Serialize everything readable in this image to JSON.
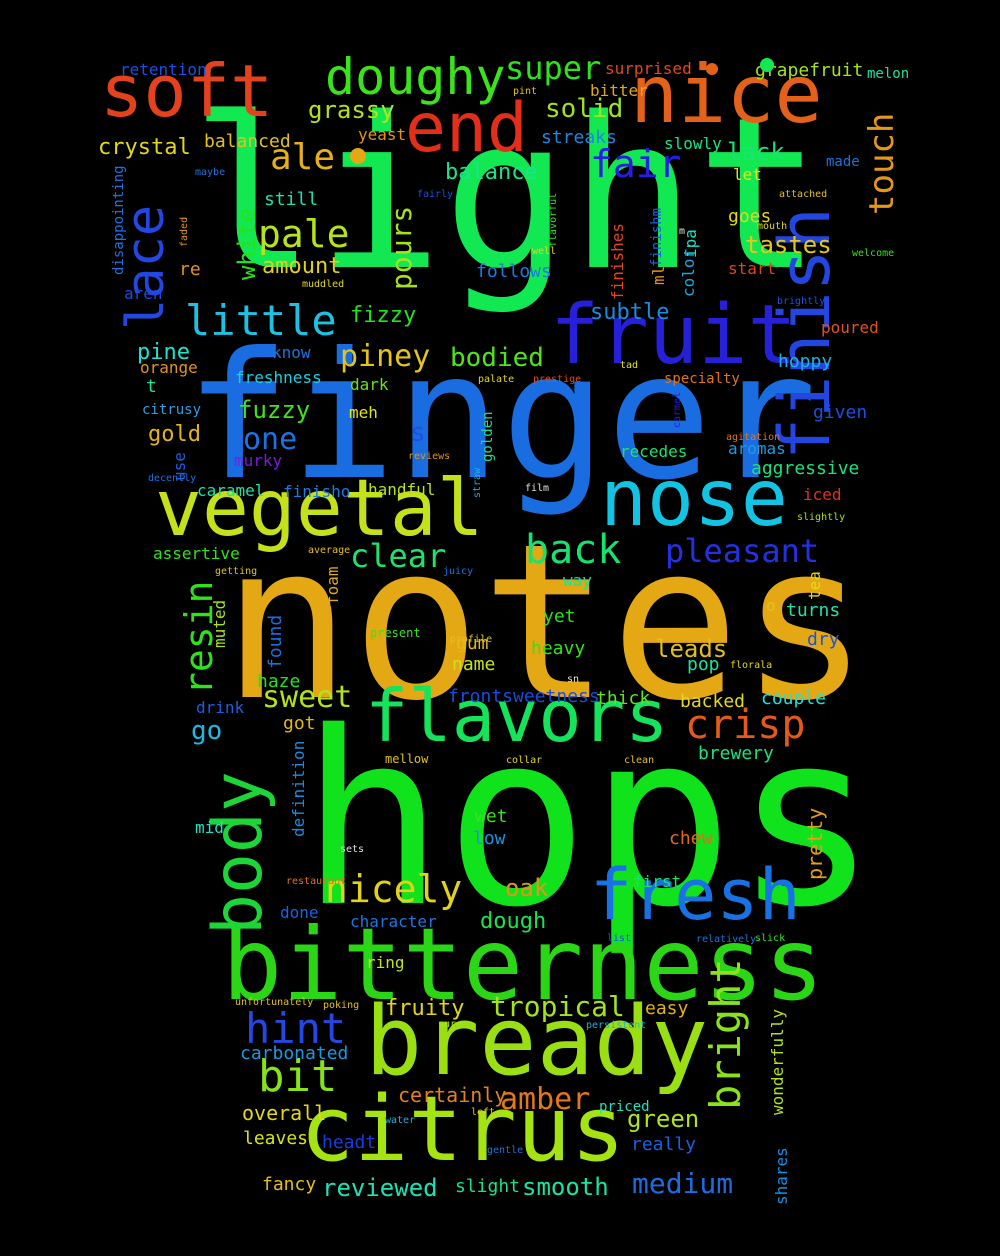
{
  "words": [
    {
      "text": "notes",
      "color": "#e5a815"
    },
    {
      "text": "hops",
      "color": "#10e31c"
    },
    {
      "text": "light",
      "color": "#12e852"
    },
    {
      "text": "finger",
      "color": "#1a6de0"
    },
    {
      "text": "bitterness",
      "color": "#2bd616"
    },
    {
      "text": "bready",
      "color": "#99df13"
    },
    {
      "text": "citrus",
      "color": "#a5e313"
    },
    {
      "text": "vegetal",
      "color": "#c4e11c"
    },
    {
      "text": "nose",
      "color": "#12c3e3"
    },
    {
      "text": "flavors",
      "color": "#14e35b"
    },
    {
      "text": "body",
      "color": "#1cd638"
    },
    {
      "text": "fruit",
      "color": "#2621d8"
    },
    {
      "text": "fresh",
      "color": "#1972e3"
    },
    {
      "text": "nice",
      "color": "#e4611a"
    },
    {
      "text": "soft",
      "color": "#e3421c"
    },
    {
      "text": "end",
      "color": "#e32e1a"
    },
    {
      "text": "finish",
      "color": "#2346e1"
    },
    {
      "text": "doughy",
      "color": "#3ce31a"
    },
    {
      "text": "lace",
      "color": "#2347e3"
    },
    {
      "text": "little",
      "color": "#1bc2e3"
    },
    {
      "text": "back",
      "color": "#16e36e"
    },
    {
      "text": "crisp",
      "color": "#e35a1c"
    },
    {
      "text": "pale",
      "color": "#b8e31a"
    },
    {
      "text": "ale",
      "color": "#e6b116"
    },
    {
      "text": "super",
      "color": "#2ee31a"
    },
    {
      "text": "touch",
      "color": "#e3981a"
    },
    {
      "text": "fair",
      "color": "#2a1ce3"
    },
    {
      "text": "nicely",
      "color": "#e3d21c"
    },
    {
      "text": "bit",
      "color": "#86e31a"
    },
    {
      "text": "hint",
      "color": "#2548e3"
    },
    {
      "text": "amber",
      "color": "#e3781a"
    },
    {
      "text": "bright",
      "color": "#8ae31a"
    },
    {
      "text": "resin",
      "color": "#2ee31a"
    },
    {
      "text": "pleasant",
      "color": "#2330e3"
    },
    {
      "text": "sweet",
      "color": "#b5e31a"
    },
    {
      "text": "clear",
      "color": "#1ee36a"
    },
    {
      "text": "piney",
      "color": "#e3c41a"
    },
    {
      "text": "tropical",
      "color": "#a6e31a"
    },
    {
      "text": "medium",
      "color": "#1c6ce3"
    },
    {
      "text": "smooth",
      "color": "#1ae3a5"
    },
    {
      "text": "reviewed",
      "color": "#1ae3b8"
    },
    {
      "text": "green",
      "color": "#b0e31a"
    },
    {
      "text": "one",
      "color": "#1a74e3"
    },
    {
      "text": "bodied",
      "color": "#52e31a"
    },
    {
      "text": "pours",
      "color": "#a8e31a"
    },
    {
      "text": "solid",
      "color": "#a1e31a"
    },
    {
      "text": "grassy",
      "color": "#b4e31a"
    },
    {
      "text": "crystal",
      "color": "#e3d81a"
    },
    {
      "text": "balance",
      "color": "#1ae38c"
    },
    {
      "text": "lack",
      "color": "#1ae371"
    },
    {
      "text": "tastes",
      "color": "#e3c81a"
    },
    {
      "text": "subtle",
      "color": "#1a8ce3"
    },
    {
      "text": "fuzzy",
      "color": "#40e31a"
    },
    {
      "text": "gold",
      "color": "#e3b41a"
    },
    {
      "text": "pine",
      "color": "#1ae3ce"
    },
    {
      "text": "amount",
      "color": "#e3d01a"
    },
    {
      "text": "fizzy",
      "color": "#20e31a"
    },
    {
      "text": "white",
      "color": "#25e31a"
    },
    {
      "text": "dough",
      "color": "#1ae350"
    },
    {
      "text": "oak",
      "color": "#e3941a"
    },
    {
      "text": "fruity",
      "color": "#e3d61a"
    },
    {
      "text": "leads",
      "color": "#e3bf1a"
    },
    {
      "text": "certainly",
      "color": "#e3811a"
    },
    {
      "text": "carbonated",
      "color": "#1a99e3"
    },
    {
      "text": "overall",
      "color": "#e3d81a"
    },
    {
      "text": "leaves",
      "color": "#d8e31a"
    },
    {
      "text": "headt",
      "color": "#1a3de3"
    },
    {
      "text": "fancy",
      "color": "#e3c11a"
    },
    {
      "text": "slight",
      "color": "#1ae384"
    },
    {
      "text": "really",
      "color": "#1a60e3"
    },
    {
      "text": "shares",
      "color": "#1a8fe3"
    },
    {
      "text": "wonderfully",
      "color": "#b4e31a"
    },
    {
      "text": "priced",
      "color": "#1ae3be"
    },
    {
      "text": "easy",
      "color": "#e3b41a"
    },
    {
      "text": "pretty",
      "color": "#e3a01a"
    },
    {
      "text": "chew",
      "color": "#e36a1a"
    },
    {
      "text": "first",
      "color": "#1ae36c"
    },
    {
      "text": "wet",
      "color": "#38e31a"
    },
    {
      "text": "low",
      "color": "#1a93e3"
    },
    {
      "text": "brewery",
      "color": "#1ae380"
    },
    {
      "text": "couple",
      "color": "#1ae3d8"
    },
    {
      "text": "backed",
      "color": "#e3d81a"
    },
    {
      "text": "thick",
      "color": "#60e31a"
    },
    {
      "text": "frontsweetness",
      "color": "#1a4be3"
    },
    {
      "text": "pop",
      "color": "#1ae3a0"
    },
    {
      "text": "heavy",
      "color": "#30e31a"
    },
    {
      "text": "yet",
      "color": "#25e31a"
    },
    {
      "text": "gum",
      "color": "#e3b91a"
    },
    {
      "text": "name",
      "color": "#c6e31a"
    },
    {
      "text": "haze",
      "color": "#24e31a"
    },
    {
      "text": "got",
      "color": "#e3b91a"
    },
    {
      "text": "go",
      "color": "#1abae3"
    },
    {
      "text": "drink",
      "color": "#1a5fe3"
    },
    {
      "text": "mid",
      "color": "#1ae3c6"
    },
    {
      "text": "definition",
      "color": "#1a8ce3"
    },
    {
      "text": "character",
      "color": "#1a76e3"
    },
    {
      "text": "done",
      "color": "#1a63e3"
    },
    {
      "text": "ring",
      "color": "#c1e31a"
    },
    {
      "text": "found",
      "color": "#1a6fe3"
    },
    {
      "text": "foam",
      "color": "#e3a81a"
    },
    {
      "text": "muted",
      "color": "#a6e31a"
    },
    {
      "text": "assertive",
      "color": "#32e31a"
    },
    {
      "text": "caramel",
      "color": "#1ae3a5"
    },
    {
      "text": "finisho",
      "color": "#1a7be3"
    },
    {
      "text": "handful",
      "color": "#b8e31a"
    },
    {
      "text": "recedes",
      "color": "#1ae36b"
    },
    {
      "text": "aromas",
      "color": "#1a9ce3"
    },
    {
      "text": "aggressive",
      "color": "#1ae37b"
    },
    {
      "text": "iced",
      "color": "#e3311a"
    },
    {
      "text": "freshness",
      "color": "#1ad0e3"
    },
    {
      "text": "dark",
      "color": "#6be31a"
    },
    {
      "text": "meh",
      "color": "#e3e31a"
    },
    {
      "text": "know",
      "color": "#1a73e3"
    },
    {
      "text": "orange",
      "color": "#e3941a"
    },
    {
      "text": "murky",
      "color": "#7a1ae3"
    },
    {
      "text": "use",
      "color": "#1a5fe3"
    },
    {
      "text": "citrusy",
      "color": "#2a9fe3"
    },
    {
      "text": "golden",
      "color": "#1ae38e"
    },
    {
      "text": "s",
      "color": "#1a53e3"
    },
    {
      "text": "hoppy",
      "color": "#1ab2e3"
    },
    {
      "text": "given",
      "color": "#1a50e3"
    },
    {
      "text": "poured",
      "color": "#e3521a"
    },
    {
      "text": "specialty",
      "color": "#e3731a"
    },
    {
      "text": "ml",
      "color": "#e3941a"
    },
    {
      "text": "finishes",
      "color": "#e3471a"
    },
    {
      "text": "finishm",
      "color": "#1a60e3"
    },
    {
      "text": "color",
      "color": "#1aa8e3"
    },
    {
      "text": "ipa",
      "color": "#1ae3c6"
    },
    {
      "text": "start",
      "color": "#e3441a"
    },
    {
      "text": "goes",
      "color": "#e3d81a"
    },
    {
      "text": "let",
      "color": "#e3e31a"
    },
    {
      "text": "follows",
      "color": "#1a7be3"
    },
    {
      "text": "still",
      "color": "#1ae3b0"
    },
    {
      "text": "re",
      "color": "#e3941a"
    },
    {
      "text": "aren",
      "color": "#1a4be3"
    },
    {
      "text": "t",
      "color": "#1ae3a0"
    },
    {
      "text": "balanced",
      "color": "#e3c11a"
    },
    {
      "text": "yeast",
      "color": "#e3941a"
    },
    {
      "text": "retention",
      "color": "#1a50e3"
    },
    {
      "text": "bitter",
      "color": "#e3a81a"
    },
    {
      "text": "surprised",
      "color": "#e3471a"
    },
    {
      "text": "grapefruit",
      "color": "#a6e31a"
    },
    {
      "text": "melon",
      "color": "#1ae3a0"
    },
    {
      "text": "streaks",
      "color": "#1a88e3"
    },
    {
      "text": "slowly",
      "color": "#1ae384"
    },
    {
      "text": "made",
      "color": "#1a73e3"
    },
    {
      "text": "disappointing",
      "color": "#1a73e3"
    },
    {
      "text": "tea",
      "color": "#e3d81a"
    },
    {
      "text": "turns",
      "color": "#1ae3a8"
    },
    {
      "text": "dry",
      "color": "#1a53e3"
    },
    {
      "text": "o",
      "color": "#e3c11a"
    },
    {
      "text": "way",
      "color": "#1ae38c"
    },
    {
      "text": "maybe",
      "color": "#1a73e3"
    },
    {
      "text": "faded",
      "color": "#e3941a"
    },
    {
      "text": "pint",
      "color": "#e3c11a"
    },
    {
      "text": "fairly",
      "color": "#1a50e3"
    },
    {
      "text": "well",
      "color": "#e3d81a"
    },
    {
      "text": "flavorful",
      "color": "#38e31a"
    },
    {
      "text": "m",
      "color": "#e3e3e3"
    },
    {
      "text": "attached",
      "color": "#e3c11a"
    },
    {
      "text": "mouth",
      "color": "#e3d81a"
    },
    {
      "text": "welcome",
      "color": "#38e31a"
    },
    {
      "text": "brightly",
      "color": "#1a50e3"
    },
    {
      "text": "muddled",
      "color": "#e3d81a"
    },
    {
      "text": "tad",
      "color": "#e3e31a"
    },
    {
      "text": "palate",
      "color": "#e3d81a"
    },
    {
      "text": "prestige",
      "color": "#e3471a"
    },
    {
      "text": "carmel",
      "color": "#2a1ae3"
    },
    {
      "text": "agitation",
      "color": "#e3731a"
    },
    {
      "text": "reviews",
      "color": "#e3941a"
    },
    {
      "text": "decently",
      "color": "#1a73e3"
    },
    {
      "text": "straw",
      "color": "#1ab2e3"
    },
    {
      "text": "film",
      "color": "#e3e3e3"
    },
    {
      "text": "slightly",
      "color": "#a6e31a"
    },
    {
      "text": "average",
      "color": "#e3c11a"
    },
    {
      "text": "getting",
      "color": "#e3c11a"
    },
    {
      "text": "juicy",
      "color": "#1a73e3"
    },
    {
      "text": "present",
      "color": "#38e31a"
    },
    {
      "text": "profile",
      "color": "#e3c11a"
    },
    {
      "text": "sn",
      "color": "#e3e3e3"
    },
    {
      "text": "florala",
      "color": "#e3d81a"
    },
    {
      "text": "mellow",
      "color": "#e3c11a"
    },
    {
      "text": "collar",
      "color": "#e3d81a"
    },
    {
      "text": "clean",
      "color": "#e3c11a"
    },
    {
      "text": "sets",
      "color": "#e3e3e3"
    },
    {
      "text": "restaurant",
      "color": "#e3731a"
    },
    {
      "text": "list",
      "color": "#1a50e3"
    },
    {
      "text": "relatively",
      "color": "#1a73e3"
    },
    {
      "text": "slick",
      "color": "#38e31a"
    },
    {
      "text": "unfortunately",
      "color": "#e3c11a"
    },
    {
      "text": "poking",
      "color": "#e3c11a"
    },
    {
      "text": "sure",
      "color": "#a6e31a"
    },
    {
      "text": "persistent",
      "color": "#1ab2e3"
    },
    {
      "text": "water",
      "color": "#1ab2e3"
    },
    {
      "text": "left",
      "color": "#e3c11a"
    },
    {
      "text": "gentle",
      "color": "#1a73e3"
    }
  ],
  "dots": [
    {
      "color": "#e5a815"
    },
    {
      "color": "#12e852"
    },
    {
      "color": "#e4611a"
    }
  ]
}
